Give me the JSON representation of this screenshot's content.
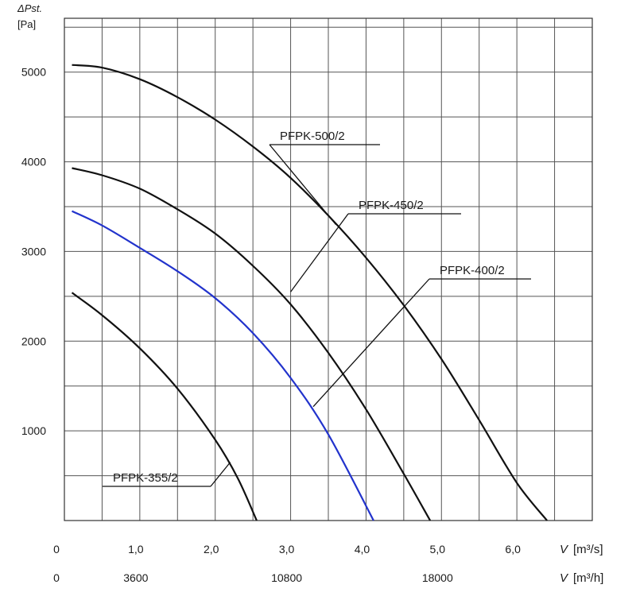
{
  "chart_data": {
    "type": "line",
    "ylabel_top": "ΔPst.",
    "ylabel_unit": "[Pa]",
    "x_axis_flow_s": {
      "symbol": "V",
      "unit": "[m³/s]",
      "ticks": [
        "0",
        "1,0",
        "2,0",
        "3,0",
        "4,0",
        "5,0",
        "6,0"
      ],
      "tick_values": [
        0,
        1,
        2,
        3,
        4,
        5,
        6
      ],
      "range": [
        0,
        7
      ]
    },
    "x_axis_flow_h": {
      "symbol": "V",
      "unit": "[m³/h]",
      "ticks": [
        "0",
        "3600",
        "10800",
        "18000"
      ],
      "tick_values": [
        0,
        1,
        3,
        5
      ]
    },
    "y_axis": {
      "ticks": [
        "1000",
        "2000",
        "3000",
        "4000",
        "5000"
      ],
      "tick_values": [
        1000,
        2000,
        3000,
        4000,
        5000
      ],
      "range": [
        0,
        5600
      ]
    },
    "grid": true,
    "series": [
      {
        "name": "PFPK-500/2",
        "color": "#111111",
        "x": [
          0.1,
          0.5,
          1.0,
          1.5,
          2.0,
          2.5,
          3.0,
          3.5,
          4.0,
          4.5,
          5.0,
          5.5,
          6.0,
          6.4
        ],
        "y": [
          5080,
          5050,
          4920,
          4720,
          4470,
          4170,
          3820,
          3400,
          2930,
          2400,
          1800,
          1120,
          420,
          0
        ]
      },
      {
        "name": "PFPK-450/2",
        "color": "#111111",
        "x": [
          0.1,
          0.5,
          1.0,
          1.5,
          2.0,
          2.5,
          3.0,
          3.5,
          4.0,
          4.5,
          4.85
        ],
        "y": [
          3930,
          3850,
          3700,
          3470,
          3200,
          2840,
          2410,
          1870,
          1240,
          520,
          0
        ]
      },
      {
        "name": "PFPK-400/2",
        "color": "#2233cc",
        "x": [
          0.1,
          0.5,
          1.0,
          1.5,
          2.0,
          2.5,
          3.0,
          3.5,
          4.1
        ],
        "y": [
          3450,
          3290,
          3040,
          2780,
          2480,
          2090,
          1590,
          960,
          0
        ]
      },
      {
        "name": "PFPK-355/2",
        "color": "#111111",
        "x": [
          0.1,
          0.5,
          1.0,
          1.5,
          2.0,
          2.3,
          2.55
        ],
        "y": [
          2540,
          2290,
          1920,
          1470,
          900,
          470,
          0
        ]
      }
    ],
    "annotations": [
      {
        "series": "PFPK-500/2",
        "text": "PFPK-500/2",
        "point": [
          3.6,
          3300
        ]
      },
      {
        "series": "PFPK-450/2",
        "text": "PFPK-450/2",
        "point": [
          3.0,
          2550
        ]
      },
      {
        "series": "PFPK-400/2",
        "text": "PFPK-400/2",
        "point": [
          3.3,
          1270
        ]
      },
      {
        "series": "PFPK-355/2",
        "text": "PFPK-355/2",
        "point": [
          2.2,
          650
        ]
      }
    ]
  }
}
